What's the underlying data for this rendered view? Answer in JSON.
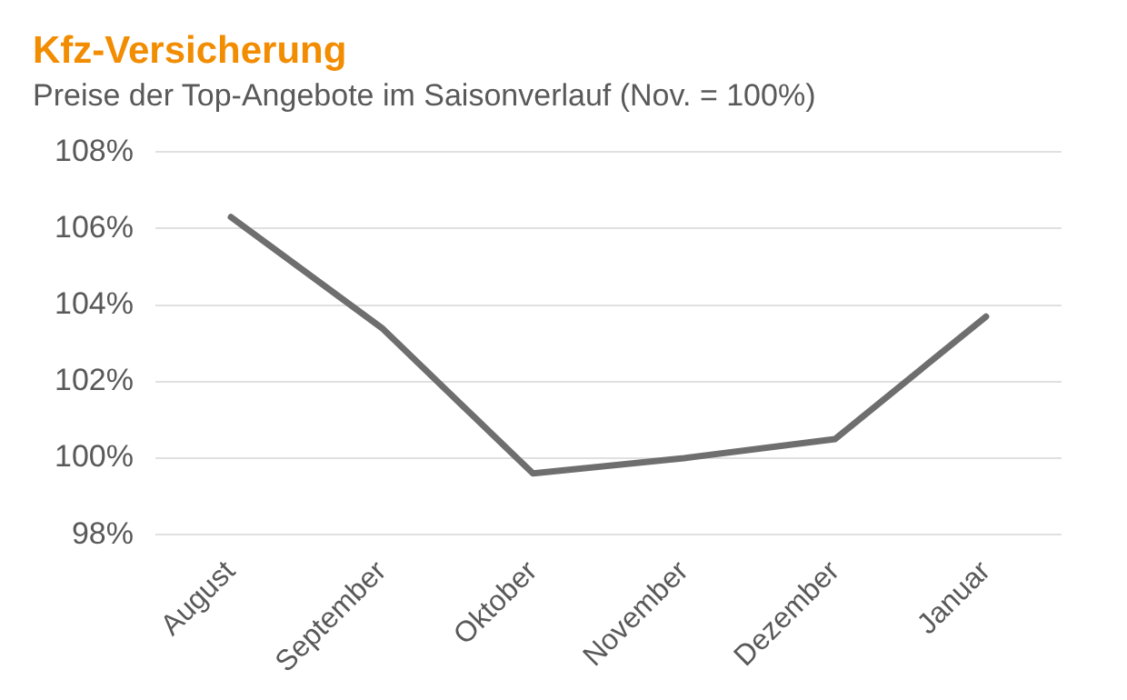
{
  "chart_data": {
    "type": "line",
    "title": "Kfz-Versicherung",
    "subtitle": "Preise der Top-Angebote im Saisonverlauf (Nov. = 100%)",
    "categories": [
      "August",
      "September",
      "Oktober",
      "November",
      "Dezember",
      "Januar"
    ],
    "series": [
      {
        "color": "#6e6e6e",
        "values": [
          106.3,
          103.4,
          99.6,
          100,
          100.5,
          103.7
        ]
      }
    ],
    "ylim": [
      98,
      108
    ],
    "yticks": [
      {
        "value": 98,
        "label": "98%"
      },
      {
        "value": 100,
        "label": "100%"
      },
      {
        "value": 102,
        "label": "102%"
      },
      {
        "value": 104,
        "label": "104%"
      },
      {
        "value": 106,
        "label": "106%"
      },
      {
        "value": 108,
        "label": "108%"
      }
    ],
    "grid": "y",
    "legend": false,
    "marker": "none",
    "line_style": "solid"
  }
}
